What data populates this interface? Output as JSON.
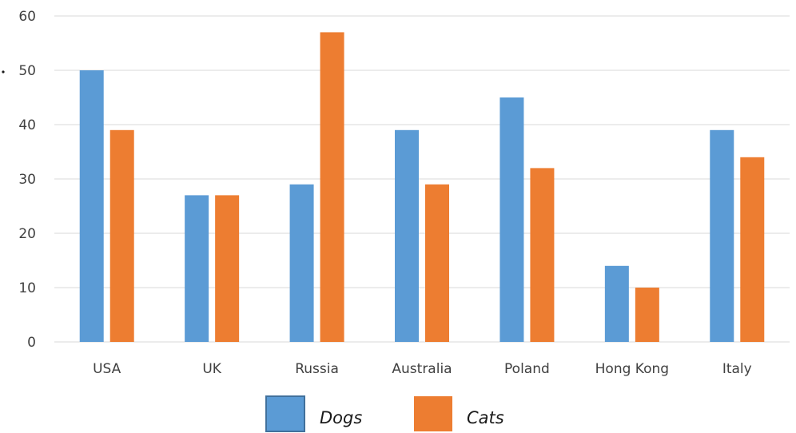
{
  "chart_data": {
    "type": "bar",
    "categories": [
      "USA",
      "UK",
      "Russia",
      "Australia",
      "Poland",
      "Hong Kong",
      "Italy"
    ],
    "series": [
      {
        "name": "Dogs",
        "color": "#5b9bd5",
        "values": [
          50,
          27,
          29,
          39,
          45,
          14,
          39
        ]
      },
      {
        "name": "Cats",
        "color": "#ed7d31",
        "values": [
          39,
          27,
          57,
          29,
          32,
          10,
          34
        ]
      }
    ],
    "ylim": [
      0,
      60
    ],
    "yticks": [
      0,
      10,
      20,
      30,
      40,
      50,
      60
    ],
    "grid": true,
    "gridColor": "#d9d9d9",
    "legend_position": "bottom"
  }
}
